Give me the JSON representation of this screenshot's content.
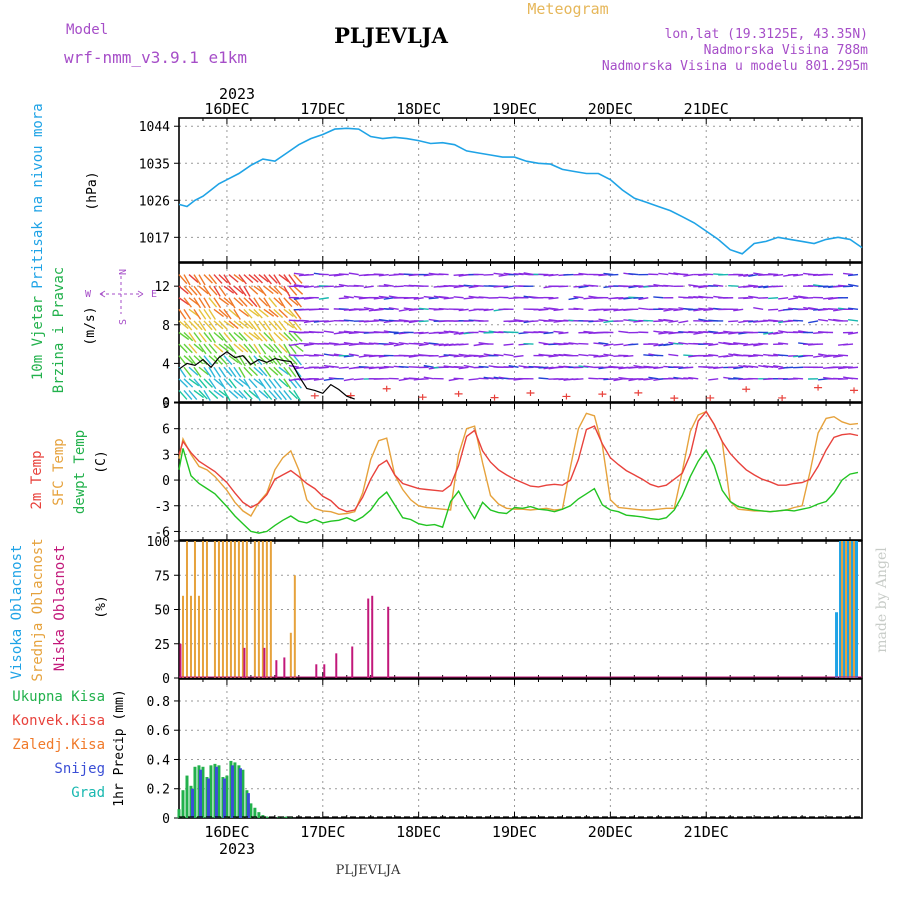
{
  "header": {
    "model_label": "Model",
    "model_name": "wrf-nmm_v3.9.1 e1km",
    "station": "PLJEVLJA",
    "title": "Meteogram",
    "lonlat": "lon,lat (19.3125E, 43.35N)",
    "altitude": "Nadmorska Visina 788m",
    "model_altitude": "Nadmorska Visina u modelu 801.295m",
    "footer_station": "PLJEVLJA",
    "credit": "made by Angel"
  },
  "colors": {
    "pressure": "#1fa3e6",
    "temp2m": "#e8423c",
    "sfc": "#e6a23c",
    "dewpt": "#22c422",
    "high_cloud": "#1fa3e6",
    "mid_cloud": "#e6a23c",
    "low_cloud": "#c2187a",
    "total_precip": "#22b14c",
    "snow": "#3b4fd6",
    "grad": "#18b8b0",
    "wind_purple": "#8a2be2",
    "wind_blue": "#2343d6"
  },
  "time_axis": {
    "year_top": "2023",
    "year_bottom": "2023",
    "days": [
      "16DEC",
      "17DEC",
      "18DEC",
      "19DEC",
      "20DEC",
      "21DEC"
    ]
  },
  "panels": {
    "pressure": {
      "ylabel_lines": [
        "Pritisak na nivou mora"
      ],
      "unit": "(hPa)",
      "ticks": [
        "1044",
        "1035",
        "1026",
        "1017"
      ]
    },
    "wind": {
      "ylabel_lines": [
        "10m Vjetar",
        "Brzina i Pravac"
      ],
      "unit": "(m/s)",
      "ticks": [
        "12",
        "8",
        "4",
        "0"
      ],
      "compass": {
        "n": "N",
        "s": "S",
        "e": "E",
        "w": "W"
      }
    },
    "temp": {
      "ylabel_lines": [
        "2m Temp",
        "SFC Temp",
        "dewpt Temp"
      ],
      "unit": "(C)",
      "ticks": [
        "9",
        "6",
        "3",
        "0",
        "-3",
        "-6"
      ]
    },
    "cloud": {
      "ylabel_lines": [
        "Visoka Oblacnost",
        "Srednja Oblacnost",
        "Niska Oblacnost"
      ],
      "unit": "(%)",
      "ticks": [
        "100",
        "75",
        "50",
        "25",
        "0"
      ]
    },
    "precip": {
      "legend": [
        "Ukupna Kisa",
        "Konvek.Kisa",
        "Zaledj.Kisa",
        "Snijeg",
        "Grad"
      ],
      "unit": "1hr Precip (mm)",
      "ticks": [
        "0.8",
        "0.6",
        "0.4",
        "0.2",
        "0"
      ]
    }
  },
  "chart_data": [
    {
      "type": "line",
      "title": "Pritisak na nivou mora",
      "ylabel": "(hPa)",
      "ylim": [
        1011,
        1046
      ],
      "x_unit": "hours from 2023-12-15 12 UTC",
      "series": [
        {
          "name": "Pritisak na nivou mora",
          "x": [
            0,
            2,
            4,
            6,
            8,
            10,
            12,
            15,
            18,
            21,
            24,
            27,
            30,
            33,
            36,
            39,
            42,
            45,
            48,
            51,
            54,
            57,
            60,
            63,
            66,
            69,
            72,
            75,
            78,
            81,
            84,
            87,
            90,
            93,
            96,
            99,
            102,
            105,
            108,
            111,
            114,
            117,
            120,
            123,
            126,
            129,
            132,
            135,
            138,
            141,
            144,
            147,
            150,
            153,
            156,
            159,
            162,
            165,
            168,
            171
          ],
          "values": [
            1025,
            1024.5,
            1026,
            1027,
            1028.5,
            1030,
            1031,
            1032.5,
            1034.5,
            1036,
            1035.5,
            1037.5,
            1039.5,
            1041,
            1042,
            1043.3,
            1043.5,
            1043.3,
            1041.5,
            1041,
            1041.3,
            1041,
            1040.5,
            1039.8,
            1040,
            1039.5,
            1038,
            1037.5,
            1037,
            1036.5,
            1036.5,
            1035.5,
            1035,
            1034.8,
            1033.5,
            1033,
            1032.5,
            1032.5,
            1031,
            1028.5,
            1026.5,
            1025.5,
            1024.5,
            1023.5,
            1022,
            1020.5,
            1018.5,
            1016.5,
            1014,
            1013,
            1015.5,
            1016,
            1017,
            1016.5,
            1016,
            1015.5,
            1016.5,
            1017,
            1016.5,
            1014.5
          ]
        }
      ]
    },
    {
      "type": "line",
      "title": "10m Vjetar Brzina i Pravac",
      "ylabel": "(m/s)",
      "ylim": [
        0,
        14.4
      ],
      "x_unit": "hours from 2023-12-15 12 UTC",
      "series": [
        {
          "name": "10m Vjetar Brzina",
          "x": [
            0,
            2,
            4,
            6,
            8,
            10,
            12,
            14,
            16,
            18,
            20,
            22,
            24,
            26,
            28,
            30,
            32,
            34,
            36,
            38,
            40,
            42,
            44
          ],
          "values": [
            3.4,
            4,
            3.8,
            4.4,
            3.6,
            4.6,
            5.2,
            4.6,
            4.8,
            3.9,
            4.4,
            4.1,
            4.5,
            4.3,
            4.2,
            2.7,
            1.4,
            1.2,
            0.9,
            1.8,
            1.3,
            0.6,
            0.3
          ]
        }
      ]
    },
    {
      "type": "line",
      "title": "2m Temp / SFC Temp / dewpt Temp",
      "ylabel": "(C)",
      "ylim": [
        -7,
        9
      ],
      "x_unit": "hours from 2023-12-15 12 UTC",
      "x": [
        0,
        1,
        3,
        5,
        7,
        9,
        12,
        14,
        16,
        18,
        20,
        22,
        24,
        26,
        28,
        30,
        32,
        34,
        36,
        38,
        40,
        42,
        44,
        46,
        48,
        50,
        52,
        54,
        56,
        58,
        60,
        62,
        64,
        66,
        68,
        70,
        72,
        74,
        76,
        78,
        80,
        82,
        84,
        86,
        88,
        90,
        92,
        94,
        96,
        98,
        100,
        102,
        104,
        106,
        108,
        110,
        112,
        114,
        116,
        118,
        120,
        122,
        124,
        126,
        128,
        130,
        132,
        134,
        136,
        138,
        140,
        142,
        144,
        146,
        148,
        150,
        152,
        154,
        156,
        158,
        160,
        162,
        164,
        166,
        168,
        170
      ],
      "series": [
        {
          "name": "2m Temp",
          "values": [
            3,
            4.5,
            3.2,
            2.2,
            1.6,
            1,
            -0.3,
            -1.5,
            -2.6,
            -3.2,
            -2.7,
            -1.7,
            0.1,
            0.6,
            1.1,
            0.4,
            -0.4,
            -1,
            -1.9,
            -2.4,
            -3.3,
            -3.7,
            -3.5,
            -2,
            0.1,
            1.7,
            2.3,
            0.6,
            -0.4,
            -0.7,
            -1,
            -1.1,
            -1.2,
            -1.3,
            -0.6,
            1.7,
            5.1,
            5.8,
            3.4,
            2.1,
            1.2,
            0.6,
            0.1,
            -0.3,
            -0.7,
            -0.8,
            -0.6,
            -0.5,
            -0.6,
            0,
            2.4,
            5.9,
            6.3,
            4.2,
            2.6,
            1.8,
            1.1,
            0.6,
            0.1,
            -0.5,
            -0.8,
            -0.6,
            0.1,
            0.8,
            3,
            6.9,
            8,
            6.5,
            4.5,
            3.1,
            2.1,
            1.2,
            0.6,
            0.1,
            -0.2,
            -0.6,
            -0.6,
            -0.4,
            -0.3,
            0.1,
            1.6,
            3.5,
            5,
            5.3,
            5.4,
            5.2
          ]
        },
        {
          "name": "SFC Temp",
          "values": [
            2.5,
            4.8,
            3,
            1.6,
            1.2,
            0.4,
            -1.2,
            -2.6,
            -3.6,
            -4.2,
            -2.6,
            -1.5,
            1.2,
            2.6,
            3.4,
            1.2,
            -2.3,
            -3.3,
            -3.6,
            -3.7,
            -4,
            -3.9,
            -3.7,
            -1.5,
            2.4,
            4.6,
            4.9,
            0.6,
            -1.1,
            -2.3,
            -3,
            -3.2,
            -3.3,
            -3.4,
            -3.5,
            3,
            6,
            6.3,
            2,
            -1.8,
            -2.8,
            -3.3,
            -3.4,
            -3.4,
            -3.5,
            -3.4,
            -3.3,
            -3.5,
            -3.4,
            1.5,
            6,
            7.8,
            7.5,
            4,
            -2.3,
            -3.2,
            -3.3,
            -3.4,
            -3.5,
            -3.5,
            -3.4,
            -3.3,
            -3.3,
            1,
            5.7,
            7.6,
            8,
            6.5,
            4.5,
            -2.5,
            -3.4,
            -3.5,
            -3.6,
            -3.6,
            -3.7,
            -3.6,
            -3.5,
            -3.2,
            -3,
            1,
            5.5,
            7.2,
            7.4,
            6.8,
            6.5,
            6.6
          ]
        },
        {
          "name": "dewpt Temp",
          "values": [
            1.2,
            3.7,
            0.5,
            -0.4,
            -1,
            -1.6,
            -3.1,
            -4.2,
            -5.1,
            -6,
            -6.2,
            -6,
            -5.3,
            -4.7,
            -4.2,
            -4.8,
            -5,
            -4.6,
            -5,
            -4.8,
            -4.7,
            -4.4,
            -4.8,
            -4.3,
            -3.5,
            -2.2,
            -1.4,
            -2.9,
            -4.4,
            -4.6,
            -5.1,
            -5.3,
            -5.2,
            -5.5,
            -2.5,
            -1.3,
            -3,
            -4.5,
            -2.6,
            -3.5,
            -3.8,
            -3.9,
            -3.2,
            -3.3,
            -3.1,
            -3.4,
            -3.5,
            -3.7,
            -3.4,
            -3,
            -2.2,
            -1.6,
            -1,
            -2.9,
            -3.5,
            -3.7,
            -4.1,
            -4.2,
            -4.3,
            -4.5,
            -4.6,
            -4.4,
            -3.5,
            -1.8,
            0.4,
            2.2,
            3.5,
            1.7,
            -1.2,
            -2.5,
            -3.1,
            -3.3,
            -3.5,
            -3.6,
            -3.7,
            -3.6,
            -3.5,
            -3.6,
            -3.4,
            -3.2,
            -2.8,
            -2.5,
            -1.5,
            0,
            0.7,
            0.9
          ]
        }
      ]
    },
    {
      "type": "bar",
      "title": "Visoka / Srednja / Niska Oblacnost",
      "ylabel": "(%)",
      "ylim": [
        0,
        100
      ],
      "x_unit": "hours from 2023-12-15 12 UTC",
      "series": [
        {
          "name": "Visoka Oblacnost",
          "x": [
            165,
            166,
            167,
            168,
            169,
            170
          ],
          "values": [
            48,
            100,
            100,
            100,
            100,
            100
          ]
        },
        {
          "name": "Srednja Oblacnost",
          "x": [
            1,
            2,
            3,
            4,
            5,
            6,
            7,
            9,
            10,
            11,
            12,
            13,
            14,
            15,
            16,
            17,
            19,
            20,
            21,
            22,
            23,
            28,
            29,
            166,
            167,
            168,
            169
          ],
          "values": [
            60,
            100,
            60,
            100,
            60,
            100,
            100,
            100,
            100,
            100,
            100,
            100,
            100,
            100,
            100,
            100,
            100,
            100,
            100,
            100,
            100,
            33,
            75,
            100,
            100,
            100,
            100
          ]
        },
        {
          "name": "Niska Oblacnost",
          "x": [
            0,
            16,
            21,
            24,
            26,
            34,
            36,
            39,
            43,
            47,
            48,
            52
          ],
          "values": [
            25,
            22,
            22,
            13,
            15,
            10,
            10,
            18,
            23,
            58,
            60,
            52
          ]
        }
      ]
    },
    {
      "type": "bar",
      "title": "1hr Precip",
      "ylabel": "(mm)",
      "ylim": [
        0,
        0.95
      ],
      "x_unit": "hours from 2023-12-15 12 UTC",
      "series": [
        {
          "name": "Ukupna Kisa",
          "x": [
            0,
            1,
            2,
            3,
            4,
            5,
            6,
            7,
            8,
            9,
            10,
            11,
            12,
            13,
            14,
            15,
            16,
            17,
            18,
            19,
            20,
            21,
            22,
            25,
            26,
            27,
            28
          ],
          "values": [
            0.06,
            0.19,
            0.29,
            0.22,
            0.35,
            0.36,
            0.35,
            0.28,
            0.36,
            0.37,
            0.36,
            0.28,
            0.29,
            0.39,
            0.38,
            0.36,
            0.33,
            0.19,
            0.1,
            0.07,
            0.04,
            0.02,
            0.01,
            0.01,
            0.01,
            0.01,
            0.01
          ]
        },
        {
          "name": "Snijeg",
          "x": [
            3,
            5,
            7,
            9,
            11,
            13,
            15,
            17
          ],
          "values": [
            0.2,
            0.33,
            0.27,
            0.35,
            0.27,
            0.36,
            0.34,
            0.17
          ]
        }
      ]
    }
  ]
}
